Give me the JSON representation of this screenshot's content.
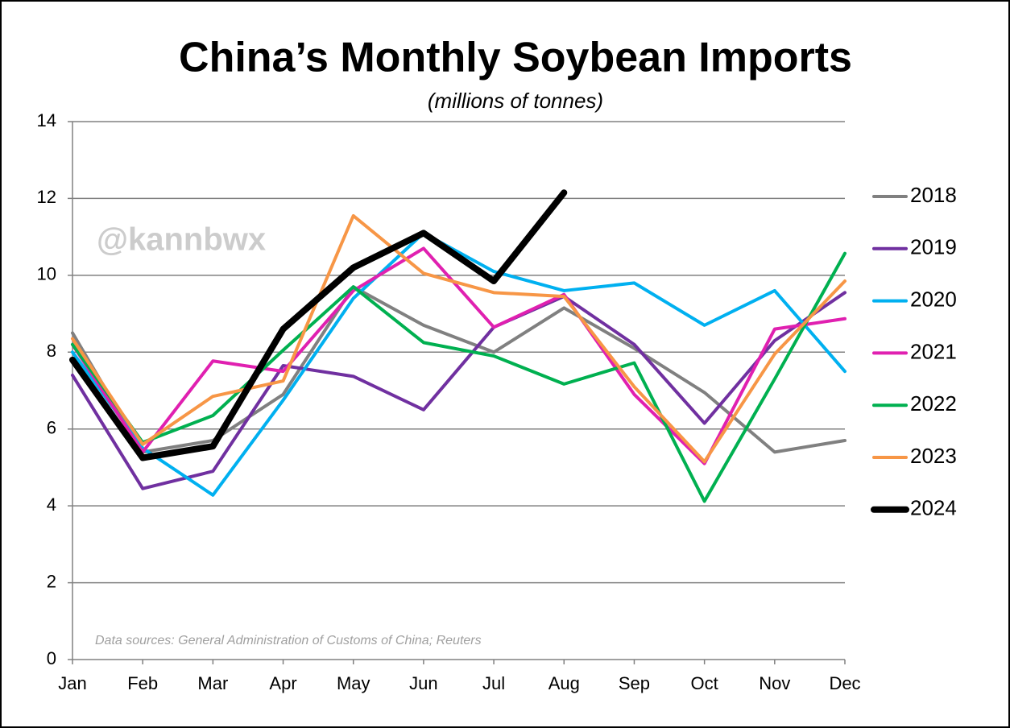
{
  "chart_data": {
    "type": "line",
    "title": "China’s Monthly Soybean Imports",
    "subtitle": "(millions of tonnes)",
    "watermark": "@kannbwx",
    "source": "Data sources: General Administration of Customs of China; Reuters",
    "categories": [
      "Jan",
      "Feb",
      "Mar",
      "Apr",
      "May",
      "Jun",
      "Jul",
      "Aug",
      "Sep",
      "Oct",
      "Nov",
      "Dec"
    ],
    "ylim": [
      0,
      14
    ],
    "yticks": [
      0,
      2,
      4,
      6,
      8,
      10,
      12,
      14
    ],
    "grid": true,
    "legend": "right",
    "series": [
      {
        "name": "2018",
        "color": "#808080",
        "values": [
          8.5,
          5.4,
          5.7,
          6.9,
          9.7,
          8.7,
          8.0,
          9.15,
          8.1,
          6.95,
          5.4,
          5.7
        ]
      },
      {
        "name": "2019",
        "color": "#7030a0",
        "values": [
          7.4,
          4.45,
          4.9,
          7.65,
          7.37,
          6.5,
          8.65,
          9.45,
          8.2,
          6.15,
          8.3,
          9.55
        ]
      },
      {
        "name": "2020",
        "color": "#00b0f0",
        "values": [
          8.0,
          5.5,
          4.28,
          6.75,
          9.4,
          11.1,
          10.1,
          9.6,
          9.8,
          8.7,
          9.6,
          7.5
        ]
      },
      {
        "name": "2021",
        "color": "#e020b0",
        "values": [
          8.2,
          5.4,
          7.77,
          7.5,
          9.6,
          10.7,
          8.65,
          9.5,
          6.9,
          5.1,
          8.6,
          8.87
        ]
      },
      {
        "name": "2022",
        "color": "#00b050",
        "values": [
          8.2,
          5.65,
          6.35,
          8.05,
          9.7,
          8.25,
          7.9,
          7.17,
          7.72,
          4.12,
          7.3,
          10.57
        ]
      },
      {
        "name": "2023",
        "color": "#f79646",
        "values": [
          8.35,
          5.6,
          6.85,
          7.25,
          11.55,
          10.05,
          9.55,
          9.45,
          7.1,
          5.15,
          7.95,
          9.85
        ]
      },
      {
        "name": "2024",
        "color": "#000000",
        "values": [
          7.8,
          5.25,
          5.55,
          8.6,
          10.2,
          11.1,
          9.85,
          12.15,
          null,
          null,
          null,
          null
        ]
      }
    ]
  }
}
